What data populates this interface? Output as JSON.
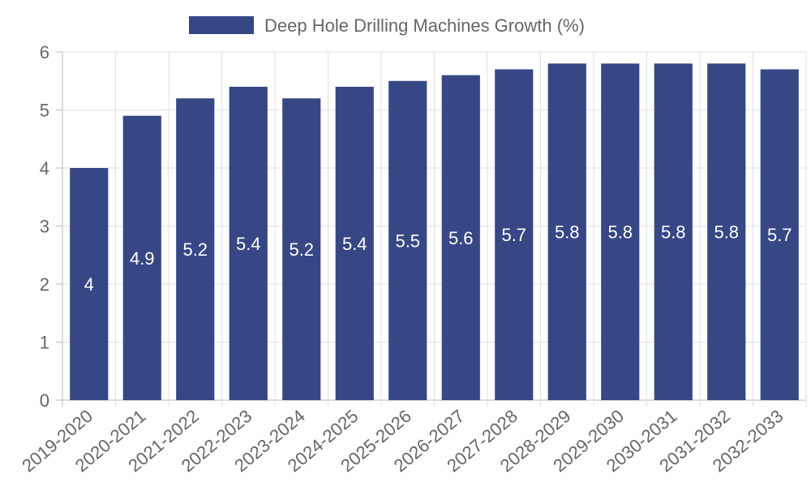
{
  "chart_data": {
    "type": "bar",
    "title": "",
    "xlabel": "",
    "ylabel": "",
    "ylim": [
      0,
      6
    ],
    "yticks": [
      "0",
      "1",
      "2",
      "3",
      "4",
      "5",
      "6"
    ],
    "grid": true,
    "legend_position": "top-center",
    "categories": [
      "2019-2020",
      "2020-2021",
      "2021-2022",
      "2022-2023",
      "2023-2024",
      "2024-2025",
      "2025-2026",
      "2026-2027",
      "2027-2028",
      "2028-2029",
      "2029-2030",
      "2030-2031",
      "2031-2032",
      "2032-2033"
    ],
    "series": [
      {
        "name": "Deep Hole Drilling Machines Growth (%)",
        "color": "#374785",
        "values": [
          4,
          4.9,
          5.2,
          5.4,
          5.2,
          5.4,
          5.5,
          5.6,
          5.7,
          5.8,
          5.8,
          5.8,
          5.8,
          5.7
        ],
        "data_labels": [
          "4",
          "4.9",
          "5.2",
          "5.4",
          "5.2",
          "5.4",
          "5.5",
          "5.6",
          "5.7",
          "5.8",
          "5.8",
          "5.8",
          "5.8",
          "5.7"
        ]
      }
    ]
  }
}
